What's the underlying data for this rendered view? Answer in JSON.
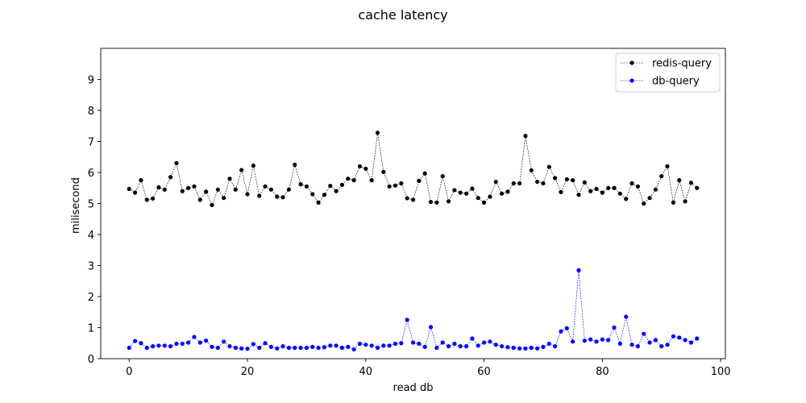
{
  "chart_data": {
    "type": "line",
    "title": "cache latency",
    "xlabel": "read db",
    "ylabel": "milisecond",
    "xlim": [
      -4.8,
      100.8
    ],
    "ylim": [
      0,
      10
    ],
    "xticks": [
      0,
      20,
      40,
      60,
      80,
      100
    ],
    "yticks": [
      0,
      1,
      2,
      3,
      4,
      5,
      6,
      7,
      8,
      9
    ],
    "grid": false,
    "legend_position": "top-right",
    "series": [
      {
        "name": "redis-query",
        "color": "#000000",
        "marker": "circle",
        "line_style": "dashed",
        "values": [
          5.47,
          5.35,
          5.75,
          5.12,
          5.16,
          5.52,
          5.45,
          5.85,
          6.3,
          5.4,
          5.5,
          5.55,
          5.12,
          5.38,
          4.95,
          5.45,
          5.18,
          5.8,
          5.45,
          6.08,
          5.3,
          6.22,
          5.25,
          5.55,
          5.45,
          5.22,
          5.2,
          5.45,
          6.25,
          5.62,
          5.55,
          5.3,
          5.03,
          5.28,
          5.57,
          5.4,
          5.6,
          5.8,
          5.75,
          6.2,
          6.12,
          5.75,
          7.28,
          6.02,
          5.55,
          5.58,
          5.65,
          5.17,
          5.12,
          5.73,
          5.97,
          5.05,
          5.03,
          5.88,
          5.07,
          5.43,
          5.35,
          5.32,
          5.48,
          5.18,
          5.03,
          5.22,
          5.7,
          5.32,
          5.38,
          5.65,
          5.65,
          7.18,
          6.07,
          5.7,
          5.65,
          6.18,
          5.82,
          5.37,
          5.78,
          5.75,
          5.28,
          5.68,
          5.4,
          5.47,
          5.35,
          5.5,
          5.5,
          5.32,
          5.15,
          5.65,
          5.55,
          5.0,
          5.18,
          5.45,
          5.88,
          6.2,
          5.03,
          5.75,
          5.07,
          5.67,
          5.5
        ]
      },
      {
        "name": "db-query",
        "color": "#0000ff",
        "marker": "circle",
        "line_style": "dashed",
        "values": [
          0.35,
          0.57,
          0.5,
          0.35,
          0.4,
          0.42,
          0.42,
          0.4,
          0.48,
          0.48,
          0.52,
          0.7,
          0.52,
          0.58,
          0.38,
          0.35,
          0.55,
          0.4,
          0.35,
          0.33,
          0.32,
          0.47,
          0.35,
          0.5,
          0.38,
          0.33,
          0.4,
          0.35,
          0.35,
          0.35,
          0.35,
          0.38,
          0.35,
          0.37,
          0.42,
          0.42,
          0.35,
          0.38,
          0.3,
          0.48,
          0.45,
          0.42,
          0.35,
          0.42,
          0.42,
          0.48,
          0.5,
          1.25,
          0.52,
          0.48,
          0.38,
          1.02,
          0.35,
          0.52,
          0.4,
          0.48,
          0.4,
          0.4,
          0.65,
          0.42,
          0.52,
          0.55,
          0.45,
          0.4,
          0.37,
          0.35,
          0.33,
          0.33,
          0.35,
          0.33,
          0.38,
          0.48,
          0.4,
          0.88,
          0.98,
          0.55,
          2.85,
          0.58,
          0.62,
          0.55,
          0.62,
          0.6,
          1.0,
          0.48,
          1.35,
          0.45,
          0.4,
          0.8,
          0.52,
          0.6,
          0.4,
          0.45,
          0.72,
          0.68,
          0.6,
          0.52,
          0.65
        ]
      }
    ]
  }
}
